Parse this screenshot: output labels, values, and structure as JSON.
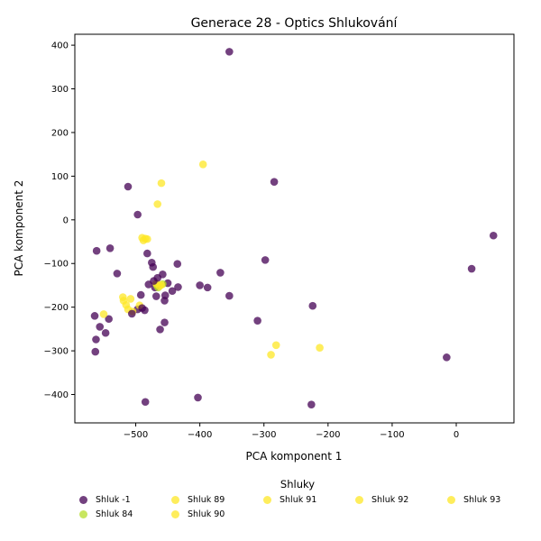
{
  "chart_data": {
    "type": "scatter",
    "title": "Generace 28 - Optics Shlukování",
    "xlabel": "PCA komponent 1",
    "ylabel": "PCA komponent 2",
    "xlim": [
      -595,
      90
    ],
    "ylim": [
      -465,
      425
    ],
    "xticks": [
      -500,
      -400,
      -300,
      -200,
      -100,
      0
    ],
    "xtick_labels": [
      "−500",
      "−400",
      "−300",
      "−200",
      "−100",
      "0"
    ],
    "yticks": [
      -400,
      -300,
      -200,
      -100,
      0,
      100,
      200,
      300,
      400
    ],
    "ytick_labels": [
      "−400",
      "−300",
      "−200",
      "−100",
      "0",
      "100",
      "200",
      "300",
      "400"
    ],
    "grid": false,
    "legend": {
      "title": "Shluky",
      "placement": "below"
    },
    "series": [
      {
        "name": "Shluk -1",
        "color": "#440154",
        "points": [
          [
            -354,
            385
          ],
          [
            -284,
            87
          ],
          [
            -512,
            76
          ],
          [
            -497,
            12
          ],
          [
            -561,
            -71
          ],
          [
            -540,
            -65
          ],
          [
            -482,
            -77
          ],
          [
            -475,
            -98
          ],
          [
            -473,
            -108
          ],
          [
            -435,
            -101
          ],
          [
            -368,
            -121
          ],
          [
            -298,
            -92
          ],
          [
            -564,
            -220
          ],
          [
            -542,
            -227
          ],
          [
            -556,
            -245
          ],
          [
            -547,
            -259
          ],
          [
            -562,
            -274
          ],
          [
            -563,
            -302
          ],
          [
            -492,
            -172
          ],
          [
            -462,
            -251
          ],
          [
            -455,
            -235
          ],
          [
            -400,
            -150
          ],
          [
            -388,
            -155
          ],
          [
            -434,
            -154
          ],
          [
            -443,
            -163
          ],
          [
            -455,
            -185
          ],
          [
            -470,
            -155
          ],
          [
            -450,
            -145
          ],
          [
            -458,
            -125
          ],
          [
            -486,
            -207
          ],
          [
            -497,
            -205
          ],
          [
            -310,
            -231
          ],
          [
            -224,
            -197
          ],
          [
            -485,
            -417
          ],
          [
            -403,
            -407
          ],
          [
            -226,
            -423
          ],
          [
            24,
            -112
          ],
          [
            58,
            -36
          ],
          [
            -15,
            -315
          ]
        ]
      },
      {
        "name": "Shluk 84",
        "color": "#b5de2b",
        "points": [
          [
            -467,
            -150
          ],
          [
            -458,
            -147
          ],
          [
            -465,
            -155
          ]
        ]
      },
      {
        "name": "Shluk 89",
        "color": "#fde725",
        "points": [
          [
            -520,
            -177
          ],
          [
            -519,
            -185
          ],
          [
            -508,
            -181
          ],
          [
            -515,
            -195
          ],
          [
            -512,
            -205
          ],
          [
            -505,
            -210
          ],
          [
            -494,
            -196
          ],
          [
            -550,
            -216
          ]
        ]
      },
      {
        "name": "Shluk 90",
        "color": "#fde725",
        "points": [
          [
            -490,
            -41
          ],
          [
            -488,
            -47
          ],
          [
            -482,
            -44
          ],
          [
            -485,
            -43
          ]
        ]
      },
      {
        "name": "Shluk 91",
        "color": "#fde725",
        "points": [
          [
            -395,
            127
          ],
          [
            -460,
            84
          ],
          [
            -466,
            36
          ]
        ]
      },
      {
        "name": "Shluk 92",
        "color": "#fde725",
        "points": [
          [
            -281,
            -287
          ],
          [
            -289,
            -309
          ],
          [
            -213,
            -293
          ]
        ]
      },
      {
        "name": "Shluk 93",
        "color": "#fde725",
        "points": [
          [
            -460,
            -149
          ],
          [
            -468,
            -146
          ],
          [
            -463,
            -152
          ]
        ]
      },
      {
        "name": "",
        "color": "#440154",
        "points": [
          [
            -529,
            -123
          ],
          [
            -354,
            -174
          ],
          [
            -506,
            -215
          ],
          [
            -468,
            -175
          ],
          [
            -454,
            -173
          ],
          [
            -480,
            -148
          ],
          [
            -466,
            -133
          ],
          [
            -472,
            -140
          ],
          [
            -490,
            -202
          ]
        ]
      }
    ]
  }
}
